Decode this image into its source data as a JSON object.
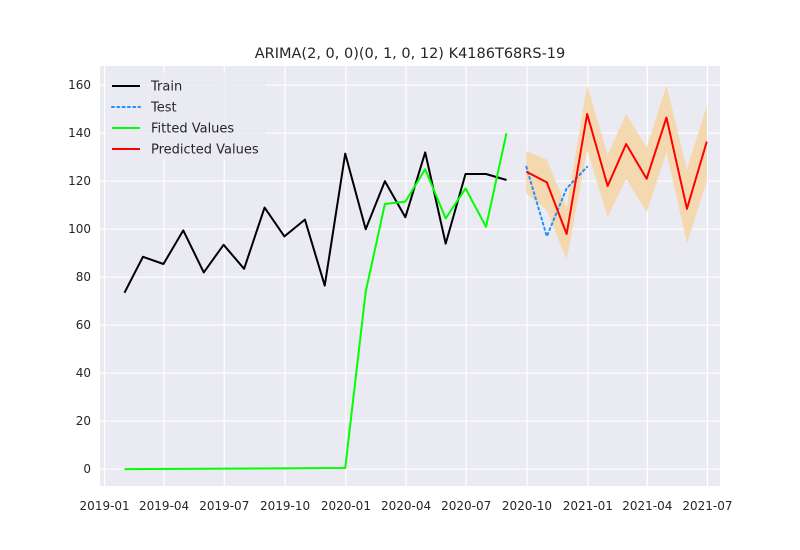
{
  "chart_data": {
    "type": "line",
    "title": "ARIMA(2, 0, 0)(0, 1, 0, 12) K4186T68RS-19",
    "xlabel": "",
    "ylabel": "",
    "x_range": [
      "2018-12-25",
      "2021-07-20"
    ],
    "ylim": [
      -7,
      168
    ],
    "x_ticks": [
      {
        "date": "2019-01-01",
        "label": "2019-01"
      },
      {
        "date": "2019-04-01",
        "label": "2019-04"
      },
      {
        "date": "2019-07-01",
        "label": "2019-07"
      },
      {
        "date": "2019-10-01",
        "label": "2019-10"
      },
      {
        "date": "2020-01-01",
        "label": "2020-01"
      },
      {
        "date": "2020-04-01",
        "label": "2020-04"
      },
      {
        "date": "2020-07-01",
        "label": "2020-07"
      },
      {
        "date": "2020-10-01",
        "label": "2020-10"
      },
      {
        "date": "2021-01-01",
        "label": "2021-01"
      },
      {
        "date": "2021-04-01",
        "label": "2021-04"
      },
      {
        "date": "2021-07-01",
        "label": "2021-07"
      }
    ],
    "y_ticks": [
      0,
      20,
      40,
      60,
      80,
      100,
      120,
      140,
      160
    ],
    "grid": true,
    "legend_position": "top-left",
    "background": "#eaeaf2",
    "series": [
      {
        "name": "Train",
        "color": "#000000",
        "style": "solid",
        "x": [
          "2019-01-31",
          "2019-02-28",
          "2019-03-31",
          "2019-04-30",
          "2019-05-31",
          "2019-06-30",
          "2019-07-31",
          "2019-08-31",
          "2019-09-30",
          "2019-10-31",
          "2019-11-30",
          "2019-12-31",
          "2020-01-31",
          "2020-02-29",
          "2020-03-31",
          "2020-04-30",
          "2020-05-31",
          "2020-06-30",
          "2020-07-31",
          "2020-08-31",
          "2020-09-30"
        ],
        "values": [
          73.5,
          88.5,
          85.5,
          99.5,
          82,
          93.5,
          83.5,
          109,
          97,
          104,
          76.5,
          131.5,
          100,
          120,
          105,
          132,
          94,
          123,
          123,
          120.5,
          null
        ]
      },
      {
        "name": "Test",
        "color": "#1e90ff",
        "style": "dotted",
        "x": [
          "2020-09-30",
          "2020-10-31",
          "2020-11-30",
          "2020-12-31"
        ],
        "values": [
          126,
          97,
          117,
          126
        ]
      },
      {
        "name": "Fitted Values",
        "color": "#00ff00",
        "style": "solid",
        "x": [
          "2019-01-31",
          "2019-12-31",
          "2020-01-31",
          "2020-02-29",
          "2020-03-31",
          "2020-04-30",
          "2020-05-31",
          "2020-06-30",
          "2020-07-31",
          "2020-08-31",
          "2020-09-30"
        ],
        "values": [
          0,
          0.5,
          74,
          110.5,
          111.5,
          125,
          104.5,
          117,
          101,
          140,
          null
        ]
      },
      {
        "name": "Predicted Values",
        "color": "#ff0000",
        "style": "solid",
        "x": [
          "2020-09-30",
          "2020-10-31",
          "2020-11-30",
          "2020-12-31",
          "2021-01-31",
          "2021-02-28",
          "2021-03-31",
          "2021-04-30",
          "2021-05-31",
          "2021-06-30"
        ],
        "values": [
          124,
          119.5,
          98,
          148,
          118,
          135.5,
          121,
          146.5,
          108.5,
          136.5
        ]
      }
    ],
    "confidence_band": {
      "color": "#f5d7a8",
      "x": [
        "2020-09-30",
        "2020-10-31",
        "2020-11-30",
        "2020-12-31",
        "2021-01-31",
        "2021-02-28",
        "2021-03-31",
        "2021-04-30",
        "2021-05-31",
        "2021-06-30"
      ],
      "lower": [
        115,
        108,
        87,
        133,
        105,
        121,
        107,
        132,
        94,
        120
      ],
      "upper": [
        132.5,
        129,
        109,
        160,
        131,
        148,
        134,
        160,
        125,
        151.5
      ]
    }
  }
}
